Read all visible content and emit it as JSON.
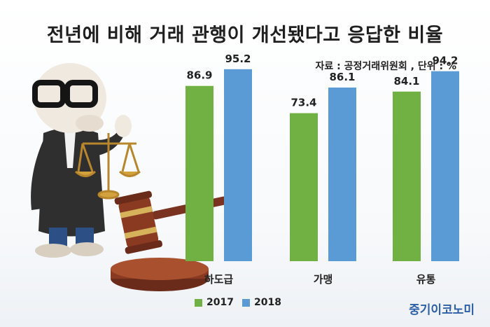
{
  "title": "전년에 비해 거래 관행이 개선됐다고 응답한 비율",
  "source_note": "자료 : 공정거래위원회 , 단위 : %",
  "brand": "중기이코노미",
  "colors": {
    "2017": "#71b043",
    "2018": "#5b9bd5"
  },
  "chart_data": {
    "type": "bar",
    "categories": [
      "하도급",
      "가맹",
      "유통"
    ],
    "series": [
      {
        "name": "2017",
        "values": [
          86.9,
          73.4,
          84.1
        ]
      },
      {
        "name": "2018",
        "values": [
          95.2,
          86.1,
          94.2
        ]
      }
    ],
    "title": "전년에 비해 거래 관행이 개선됐다고 응답한 비율",
    "unit": "%",
    "ylim": [
      0,
      100
    ],
    "legend": "bottom",
    "grid": false
  }
}
